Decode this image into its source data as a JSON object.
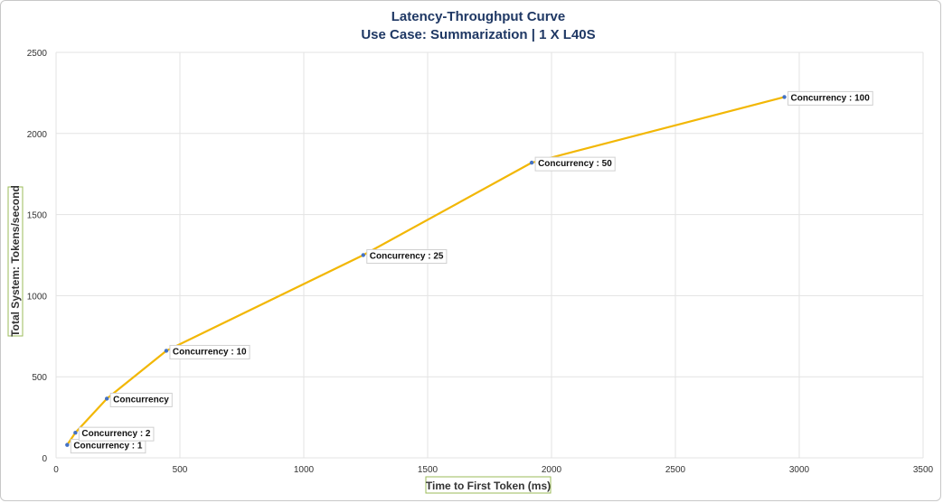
{
  "chart_data": {
    "type": "line",
    "title": "Latency-Throughput Curve",
    "subtitle": "Use Case: Summarization | 1 X L40S",
    "xlabel": "Time to First Token (ms)",
    "ylabel": "Total System: Tokens/second",
    "xlim": [
      0,
      3500
    ],
    "ylim": [
      0,
      2500
    ],
    "xticks": [
      0,
      500,
      1000,
      1500,
      2000,
      2500,
      3000,
      3500
    ],
    "yticks": [
      0,
      500,
      1000,
      1500,
      2000,
      2500
    ],
    "grid": true,
    "line_color": "#f2b705",
    "marker_color": "#4472c4",
    "points": [
      {
        "x": 45,
        "y": 80,
        "label": "Concurrency : 1"
      },
      {
        "x": 78,
        "y": 155,
        "label": "Concurrency : 2"
      },
      {
        "x": 205,
        "y": 365,
        "label": "Concurrency"
      },
      {
        "x": 445,
        "y": 660,
        "label": "Concurrency : 10"
      },
      {
        "x": 1240,
        "y": 1250,
        "label": "Concurrency : 25"
      },
      {
        "x": 1920,
        "y": 1820,
        "label": "Concurrency : 50"
      },
      {
        "x": 2940,
        "y": 2225,
        "label": "Concurrency : 100"
      }
    ]
  }
}
